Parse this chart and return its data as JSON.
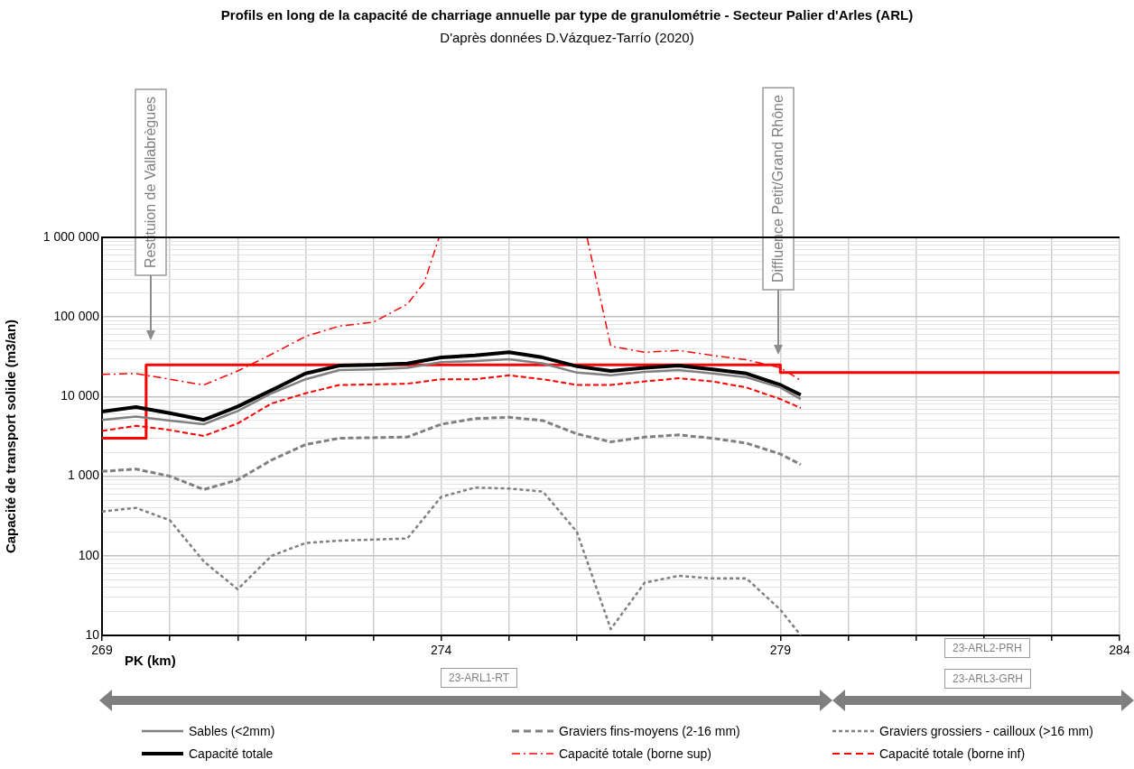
{
  "chart_data": {
    "type": "line",
    "title": "Profils en long de la capacité de charriage annuelle par type de granulométrie - Secteur Palier d'Arles (ARL)",
    "subtitle": "D'après données D.Vázquez-Tarrío (2020)",
    "xlabel": "PK (km)",
    "ylabel": "Capacité de transport solide (m3/an)",
    "x": [
      269,
      269.5,
      270,
      270.5,
      271,
      271.5,
      272,
      272.5,
      273,
      273.5,
      274,
      274.5,
      275,
      275.5,
      276,
      276.5,
      277,
      277.5,
      278,
      278.5,
      279,
      279.3
    ],
    "series": [
      {
        "name": "Sables (<2mm)",
        "color": "#808080",
        "line_style": "solid",
        "values": [
          5100,
          5600,
          5000,
          4500,
          6600,
          11000,
          16500,
          21500,
          22000,
          23000,
          27000,
          28000,
          29500,
          26000,
          20000,
          18500,
          20500,
          21500,
          19500,
          17500,
          13000,
          9300
        ]
      },
      {
        "name": "Graviers fins-moyens (2-16 mm)",
        "color": "#808080",
        "line_style": "dashed",
        "values": [
          1150,
          1230,
          1000,
          680,
          900,
          1600,
          2500,
          3000,
          3050,
          3100,
          4500,
          5300,
          5500,
          5000,
          3400,
          2700,
          3100,
          3300,
          3000,
          2600,
          1900,
          1400
        ]
      },
      {
        "name": "Graviers grossiers - cailloux (>16 mm)",
        "color": "#808080",
        "line_style": "dotted",
        "values": [
          360,
          400,
          280,
          85,
          38,
          100,
          145,
          155,
          160,
          165,
          550,
          720,
          700,
          640,
          200,
          12,
          46,
          56,
          52,
          52,
          21,
          10
        ]
      },
      {
        "name": "Capacité totale",
        "color": "#000000",
        "line_style": "solid",
        "values": [
          6500,
          7400,
          6200,
          5100,
          7500,
          12000,
          19500,
          24500,
          25000,
          26000,
          31000,
          33000,
          36000,
          31000,
          24000,
          21000,
          23000,
          24500,
          22000,
          19500,
          14000,
          10500
        ]
      },
      {
        "name": "Capacité totale (borne sup)",
        "color": "#ff0000",
        "line_style": "dashdot",
        "x": [
          269,
          269.5,
          270,
          270.5,
          271,
          271.5,
          272,
          272.5,
          273,
          273.5,
          273.75,
          273.97,
          275,
          276.15,
          276.5,
          277,
          277.5,
          278,
          278.5,
          279,
          279.3
        ],
        "values": [
          19000,
          19500,
          16500,
          14000,
          21000,
          34000,
          57000,
          77000,
          86000,
          145000,
          270000,
          1000000,
          null,
          1000000,
          43000,
          36000,
          38000,
          33000,
          29000,
          23000,
          16000
        ]
      },
      {
        "name": "Capacité totale (borne inf)",
        "color": "#ff0000",
        "line_style": "dashed",
        "values": [
          3700,
          4300,
          3800,
          3200,
          4600,
          8200,
          11000,
          14000,
          14200,
          14500,
          16500,
          16500,
          18500,
          16500,
          14000,
          14000,
          15500,
          17000,
          15500,
          13000,
          9300,
          7200
        ]
      },
      {
        "type": "step",
        "color": "#ff0000",
        "line_style": "solid",
        "x": [
          269,
          269.65,
          279,
          284
        ],
        "values": [
          3000,
          25000,
          20000,
          20000
        ]
      }
    ],
    "log": "y",
    "xlim": [
      269,
      284
    ],
    "xticks": [
      269,
      {
        "value": 270,
        "label": null
      },
      {
        "value": 271,
        "label": null
      },
      {
        "value": 272,
        "label": null
      },
      {
        "value": 273,
        "label": null
      },
      274,
      {
        "value": 275,
        "label": null
      },
      {
        "value": 276,
        "label": null
      },
      {
        "value": 277,
        "label": null
      },
      {
        "value": 278,
        "label": null
      },
      279,
      {
        "value": 280,
        "label": null
      },
      {
        "value": 281,
        "label": null
      },
      {
        "value": 282,
        "label": null
      },
      {
        "value": 283,
        "label": null
      },
      284
    ],
    "ylim": [
      10,
      1000000
    ],
    "yticks": [
      10,
      {
        "value": 20,
        "label": null
      },
      {
        "value": 30,
        "label": null
      },
      {
        "value": 40,
        "label": null
      },
      {
        "value": 50,
        "label": null
      },
      {
        "value": 60,
        "label": null
      },
      {
        "value": 70,
        "label": null
      },
      {
        "value": 80,
        "label": null
      },
      {
        "value": 90,
        "label": null
      },
      100,
      {
        "value": 200,
        "label": null
      },
      {
        "value": 300,
        "label": null
      },
      {
        "value": 400,
        "label": null
      },
      {
        "value": 500,
        "label": null
      },
      {
        "value": 600,
        "label": null
      },
      {
        "value": 700,
        "label": null
      },
      {
        "value": 800,
        "label": null
      },
      {
        "value": 900,
        "label": null
      },
      {
        "value": 1000,
        "label": "1 000"
      },
      {
        "value": 2000,
        "label": null
      },
      {
        "value": 3000,
        "label": null
      },
      {
        "value": 4000,
        "label": null
      },
      {
        "value": 5000,
        "label": null
      },
      {
        "value": 6000,
        "label": null
      },
      {
        "value": 7000,
        "label": null
      },
      {
        "value": 8000,
        "label": null
      },
      {
        "value": 9000,
        "label": null
      },
      {
        "value": 10000,
        "label": "10 000"
      },
      {
        "value": 20000,
        "label": null
      },
      {
        "value": 30000,
        "label": null
      },
      {
        "value": 40000,
        "label": null
      },
      {
        "value": 50000,
        "label": null
      },
      {
        "value": 60000,
        "label": null
      },
      {
        "value": 70000,
        "label": null
      },
      {
        "value": 80000,
        "label": null
      },
      {
        "value": 90000,
        "label": null
      },
      {
        "value": 100000,
        "label": "100 000"
      },
      {
        "value": 200000,
        "label": null
      },
      {
        "value": 300000,
        "label": null
      },
      {
        "value": 400000,
        "label": null
      },
      {
        "value": 500000,
        "label": null
      },
      {
        "value": 600000,
        "label": null
      },
      {
        "value": 700000,
        "label": null
      },
      {
        "value": 800000,
        "label": null
      },
      {
        "value": 900000,
        "label": null
      },
      {
        "value": 1000000,
        "label": "1 000 000"
      }
    ],
    "grid": true,
    "legend": "bottom",
    "marker": "none",
    "annotations": [
      "Restituion de Vallabrègues",
      "Diffluence Petit/Grand Rhône",
      "23-ARL1-RT",
      "23-ARL2-PRH",
      "23-ARL3-GRH"
    ]
  }
}
